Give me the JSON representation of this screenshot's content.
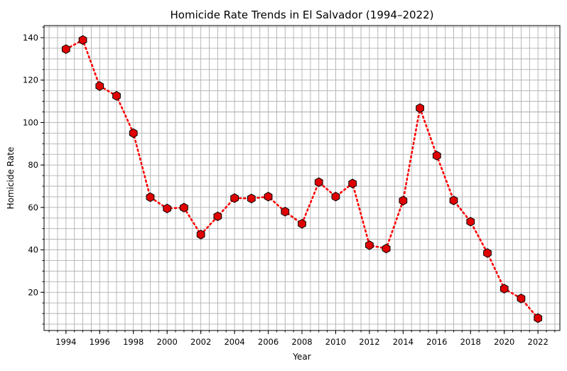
{
  "chart_data": {
    "type": "line",
    "title": "Homicide Rate Trends in El Salvador (1994–2022)",
    "xlabel": "Year",
    "ylabel": "Homicide Rate",
    "x": [
      1994,
      1995,
      1996,
      1997,
      1998,
      1999,
      2000,
      2001,
      2002,
      2003,
      2004,
      2005,
      2006,
      2007,
      2008,
      2009,
      2010,
      2011,
      2012,
      2013,
      2014,
      2015,
      2016,
      2017,
      2018,
      2019,
      2020,
      2021,
      2022
    ],
    "series": [
      {
        "values": [
          134.6,
          138.9,
          117.2,
          112.6,
          95.0,
          64.8,
          59.5,
          59.9,
          47.2,
          55.8,
          64.4,
          64.2,
          65.1,
          58.0,
          52.3,
          71.9,
          65.1,
          71.3,
          42.2,
          40.6,
          63.2,
          106.8,
          84.4,
          63.3,
          53.3,
          38.5,
          21.7,
          17.1,
          7.8
        ],
        "color": "#ff0000",
        "marker": "hexagon",
        "marker_fill": "#e00000",
        "marker_edge": "#000000",
        "line_style": "dotted"
      }
    ],
    "xlim": [
      1992.7,
      2023.3
    ],
    "ylim": [
      2.0,
      145.7
    ],
    "x_ticks": [
      1994,
      1996,
      1998,
      2000,
      2002,
      2004,
      2006,
      2008,
      2010,
      2012,
      2014,
      2016,
      2018,
      2020,
      2022
    ],
    "y_ticks": [
      20,
      40,
      60,
      80,
      100,
      120,
      140
    ],
    "x_tick_labels": [
      "1994",
      "1996",
      "1998",
      "2000",
      "2002",
      "2004",
      "2006",
      "2008",
      "2010",
      "2012",
      "2014",
      "2016",
      "2018",
      "2020",
      "2022"
    ],
    "y_tick_labels": [
      "20",
      "40",
      "60",
      "80",
      "100",
      "120",
      "140"
    ],
    "x_minor_step": 0.5,
    "y_minor_step": 5,
    "grid": true,
    "legend": "none"
  }
}
